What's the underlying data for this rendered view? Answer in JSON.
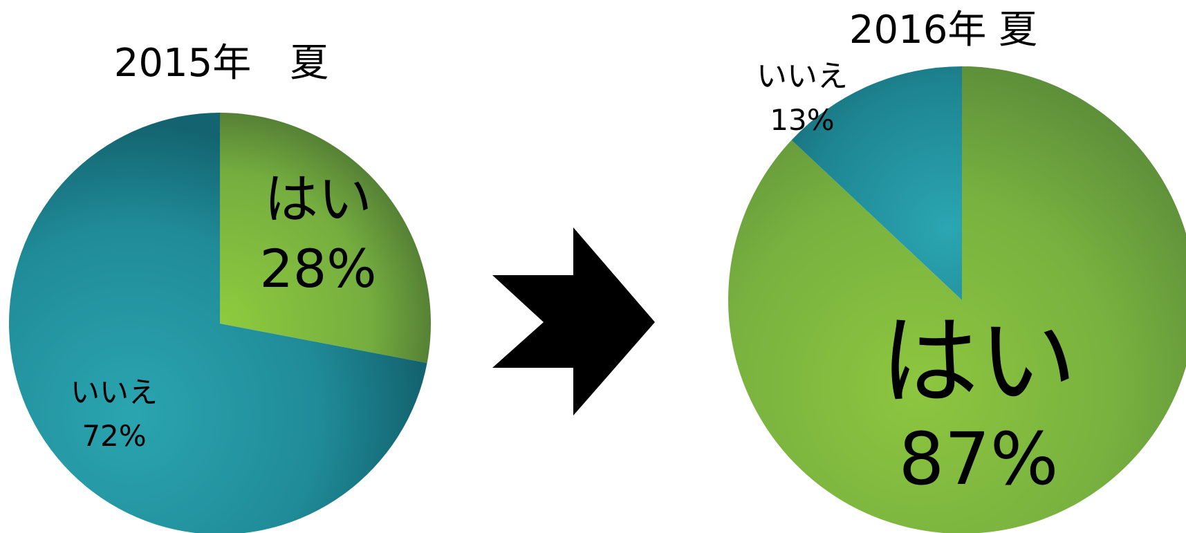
{
  "chart_data": [
    {
      "type": "pie",
      "title": "2015年　夏",
      "slices": [
        {
          "label": "はい",
          "value": 28,
          "value_text": "28%",
          "color": "#8DC63F"
        },
        {
          "label": "いいえ",
          "value": 72,
          "value_text": "72%",
          "color": "#2AA0AC"
        }
      ]
    },
    {
      "type": "pie",
      "title": "2016年 夏",
      "slices": [
        {
          "label": "はい",
          "value": 87,
          "value_text": "87%",
          "color": "#8DC63F"
        },
        {
          "label": "いいえ",
          "value": 13,
          "value_text": "13%",
          "color": "#2AA0AC"
        }
      ]
    }
  ],
  "arrow_icon": "right-arrow-icon"
}
